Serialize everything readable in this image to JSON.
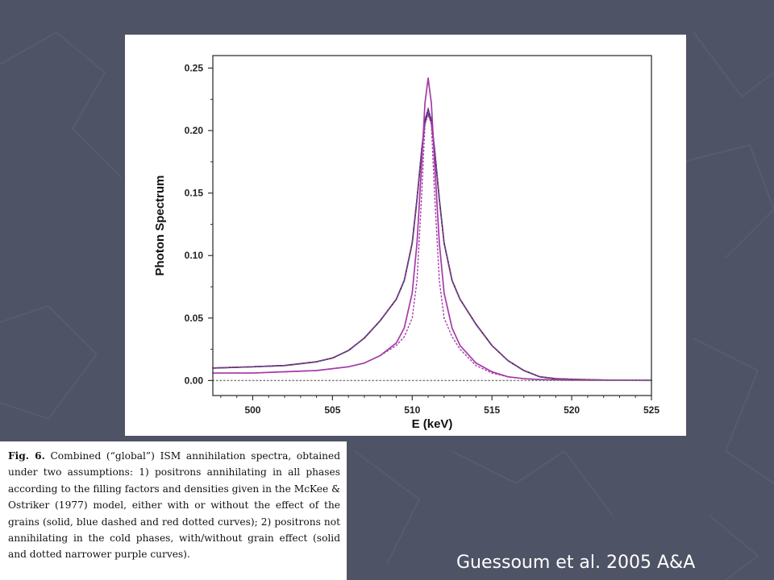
{
  "caption": {
    "label": "Fig. 6.",
    "text": " Combined (“global”) ISM annihilation spectra, obtained under two assumptions: 1) positrons annihilating in all phases according to the filling factors and densities given in the McKee & Ostriker (1977) model, either with or without the effect of the grains (solid, blue dashed and red dotted curves); 2) positrons not annihilating in the cold phases, with/without grain effect (solid and dotted narrower purple curves)."
  },
  "citation": "Guessoum et al. 2005 A&A",
  "colors": {
    "background": "#4f5366",
    "navy_solid": "#1b1f5e",
    "blue_dashed": "#1f4fd8",
    "red_dotted": "#c0303a",
    "purple": "#a53aa8",
    "grey_baseline": "#808080"
  },
  "chart_data": {
    "type": "line",
    "title": "",
    "xlabel": "E (keV)",
    "ylabel": "Photon Spectrum",
    "xlim": [
      497.5,
      525
    ],
    "ylim": [
      -0.012,
      0.26
    ],
    "xticks": [
      500,
      505,
      510,
      515,
      520,
      525
    ],
    "yticks": [
      0.0,
      0.05,
      0.1,
      0.15,
      0.2,
      0.25
    ],
    "xtick_labels": [
      "500",
      "505",
      "510",
      "515",
      "520",
      "525"
    ],
    "ytick_labels": [
      "0.00",
      "0.05",
      "0.10",
      "0.15",
      "0.20",
      "0.25"
    ],
    "grid": false,
    "legend": "none",
    "series": [
      {
        "style": "solid",
        "color": "#1b1f5e",
        "x": [
          497.5,
          500,
          502,
          504,
          505,
          506,
          507,
          508,
          509,
          509.5,
          510,
          510.3,
          510.6,
          510.8,
          511,
          511.2,
          511.4,
          511.7,
          512,
          512.5,
          513,
          514,
          515,
          516,
          517,
          518,
          519,
          520,
          522,
          525
        ],
        "y": [
          0.01,
          0.011,
          0.012,
          0.015,
          0.018,
          0.024,
          0.034,
          0.048,
          0.065,
          0.08,
          0.11,
          0.145,
          0.185,
          0.208,
          0.217,
          0.208,
          0.185,
          0.145,
          0.11,
          0.08,
          0.065,
          0.045,
          0.028,
          0.016,
          0.008,
          0.003,
          0.0015,
          0.001,
          0.0004,
          0.0002
        ]
      },
      {
        "style": "dashed",
        "color": "#1f4fd8",
        "x": [
          497.5,
          500,
          502,
          504,
          505,
          506,
          507,
          508,
          509,
          509.5,
          510,
          510.3,
          510.6,
          510.8,
          511,
          511.2,
          511.4,
          511.7,
          512,
          512.5,
          513,
          514,
          515,
          516,
          517,
          518,
          519,
          520,
          522,
          525
        ],
        "y": [
          0.01,
          0.011,
          0.012,
          0.015,
          0.018,
          0.024,
          0.034,
          0.048,
          0.065,
          0.08,
          0.11,
          0.145,
          0.185,
          0.206,
          0.214,
          0.206,
          0.185,
          0.145,
          0.11,
          0.08,
          0.065,
          0.045,
          0.028,
          0.016,
          0.008,
          0.003,
          0.0015,
          0.001,
          0.0004,
          0.0002
        ]
      },
      {
        "style": "dotted",
        "color": "#c0303a",
        "x": [
          497.5,
          500,
          502,
          504,
          505,
          506,
          507,
          508,
          509,
          509.5,
          510,
          510.3,
          510.6,
          510.8,
          511,
          511.2,
          511.4,
          511.7,
          512,
          512.5,
          513,
          514,
          515,
          516,
          517,
          518,
          519,
          520,
          522,
          525
        ],
        "y": [
          0.01,
          0.011,
          0.012,
          0.015,
          0.018,
          0.024,
          0.034,
          0.048,
          0.065,
          0.08,
          0.11,
          0.145,
          0.184,
          0.205,
          0.213,
          0.205,
          0.184,
          0.145,
          0.11,
          0.08,
          0.065,
          0.045,
          0.028,
          0.016,
          0.008,
          0.003,
          0.0015,
          0.001,
          0.0004,
          0.0002
        ]
      },
      {
        "style": "solid",
        "color": "#a53aa8",
        "x": [
          497.5,
          500,
          502,
          504,
          506,
          507,
          508,
          509,
          509.5,
          510,
          510.3,
          510.6,
          510.8,
          511,
          511.2,
          511.4,
          511.7,
          512,
          512.5,
          513,
          514,
          515,
          516,
          517,
          518,
          520,
          525
        ],
        "y": [
          0.006,
          0.006,
          0.007,
          0.008,
          0.011,
          0.014,
          0.02,
          0.03,
          0.042,
          0.07,
          0.11,
          0.175,
          0.222,
          0.242,
          0.222,
          0.175,
          0.11,
          0.07,
          0.042,
          0.028,
          0.014,
          0.007,
          0.003,
          0.0015,
          0.0008,
          0.0003,
          0.0001
        ]
      },
      {
        "style": "dotted",
        "color": "#a53aa8",
        "x": [
          497.5,
          500,
          502,
          504,
          506,
          507,
          508,
          509,
          509.5,
          510,
          510.3,
          510.6,
          510.8,
          511,
          511.2,
          511.4,
          511.7,
          512,
          512.5,
          513,
          514,
          515,
          516,
          517,
          518,
          520,
          525
        ],
        "y": [
          0.006,
          0.006,
          0.007,
          0.008,
          0.011,
          0.014,
          0.02,
          0.028,
          0.035,
          0.05,
          0.08,
          0.15,
          0.205,
          0.218,
          0.205,
          0.15,
          0.08,
          0.05,
          0.035,
          0.025,
          0.012,
          0.006,
          0.003,
          0.0015,
          0.0008,
          0.0003,
          0.0001
        ]
      },
      {
        "style": "dotted",
        "color": "#808080",
        "x": [
          497.5,
          525
        ],
        "y": [
          0.0,
          0.0
        ]
      }
    ]
  }
}
